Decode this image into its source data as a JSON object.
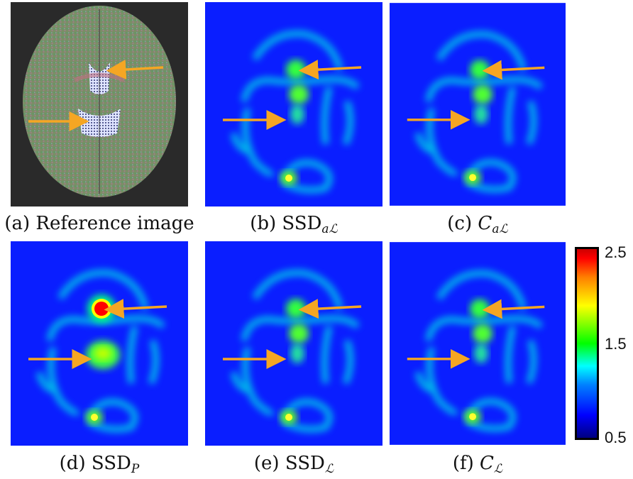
{
  "figure": {
    "panels": [
      {
        "id": "a",
        "letter": "(a)",
        "label": "Reference image",
        "sub": ""
      },
      {
        "id": "b",
        "letter": "(b)",
        "label": "SSD",
        "sub": "aℒ"
      },
      {
        "id": "c",
        "letter": "(c)",
        "label": "C",
        "sub": "aℒ"
      },
      {
        "id": "d",
        "letter": "(d)",
        "label": "SSD",
        "sub": "P"
      },
      {
        "id": "e",
        "letter": "(e)",
        "label": "SSD",
        "sub": "ℒ"
      },
      {
        "id": "f",
        "letter": "(f)",
        "label": "C",
        "sub": "ℒ"
      }
    ],
    "colorbar": {
      "min": "0.5",
      "mid": "1.5",
      "max": "2.5",
      "colors": [
        "#00007f",
        "#0000ff",
        "#00ffff",
        "#00ff00",
        "#ffff00",
        "#ff0000"
      ]
    },
    "colors": {
      "map_background": "#0a1eff",
      "arrow": "#f5a623",
      "brain_background": "#2a2a2a"
    }
  }
}
